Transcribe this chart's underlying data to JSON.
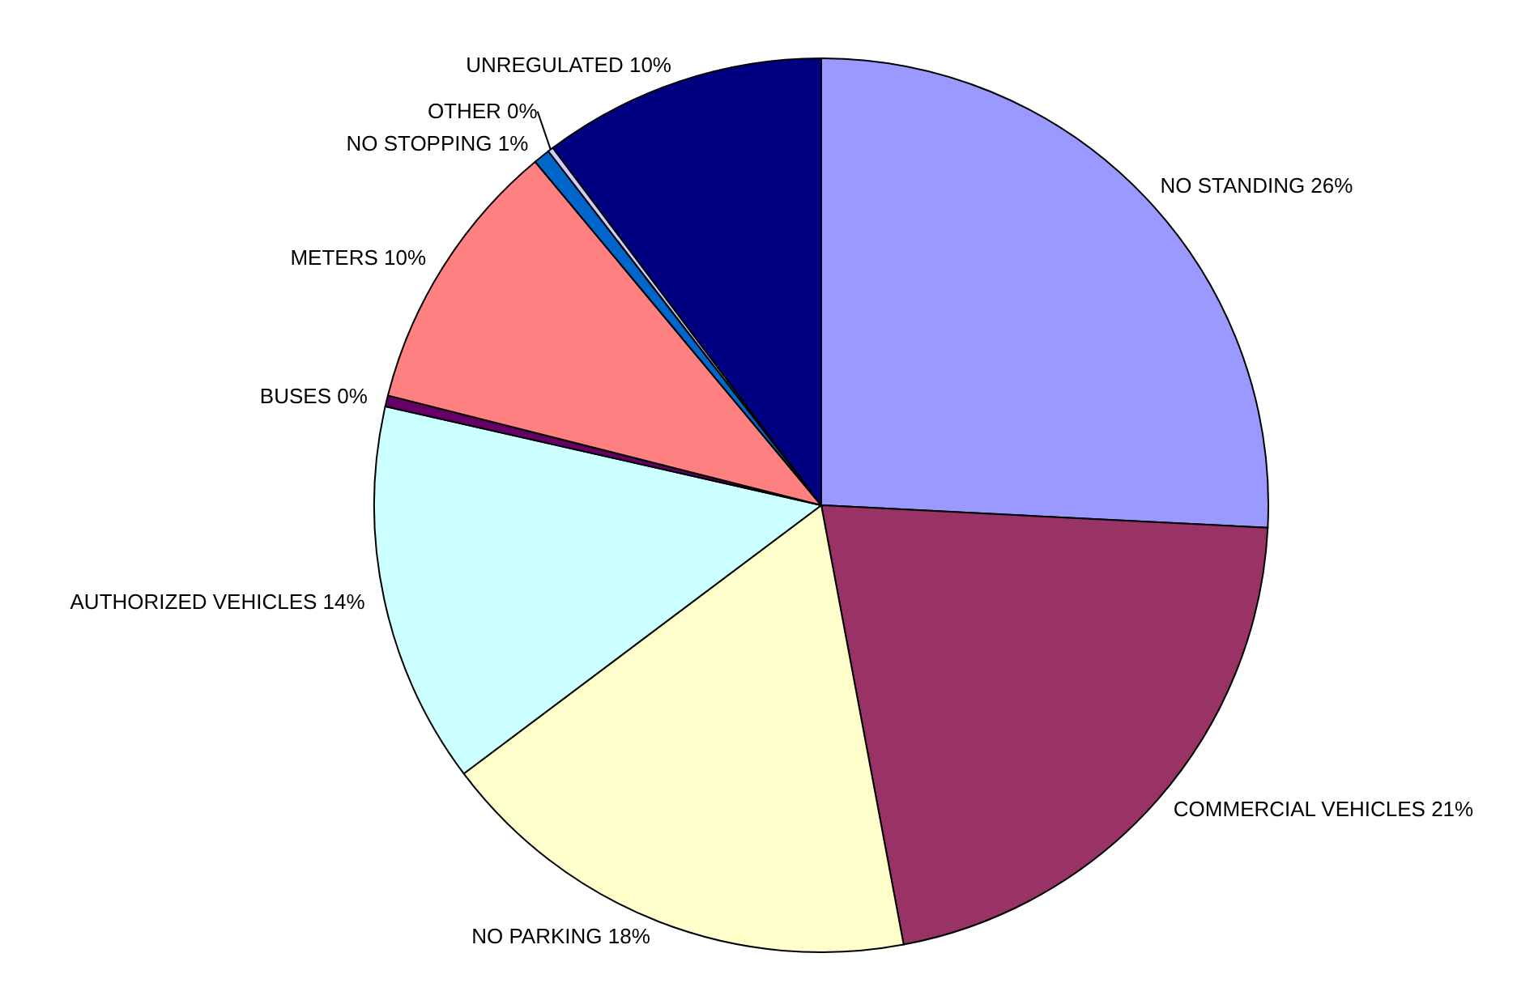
{
  "chart_data": {
    "type": "pie",
    "categories": [
      "NO STANDING",
      "COMMERCIAL VEHICLES",
      "NO PARKING",
      "AUTHORIZED VEHICLES",
      "BUSES",
      "METERS",
      "NO STOPPING",
      "OTHER",
      "UNREGULATED"
    ],
    "values": [
      25.8,
      21.25,
      17.7,
      13.8,
      0.4,
      10.0,
      0.6,
      0.2,
      10.25
    ],
    "value_labels": [
      "26%",
      "21%",
      "18%",
      "14%",
      "0%",
      "10%",
      "1%",
      "0%",
      "10%"
    ],
    "colors": [
      "#9999ff",
      "#993366",
      "#ffffcc",
      "#ccffff",
      "#660066",
      "#ff8080",
      "#0066cc",
      "#ccccff",
      "#000080"
    ]
  }
}
